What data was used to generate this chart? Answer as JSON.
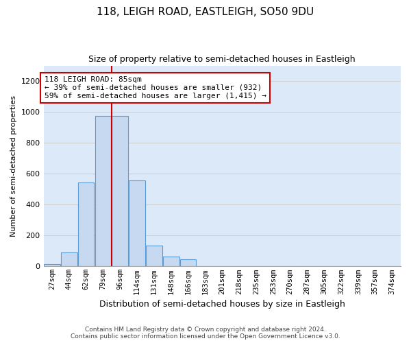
{
  "title_main": "118, LEIGH ROAD, EASTLEIGH, SO50 9DU",
  "title_sub": "Size of property relative to semi-detached houses in Eastleigh",
  "xlabel": "Distribution of semi-detached houses by size in Eastleigh",
  "ylabel": "Number of semi-detached properties",
  "categories": [
    "27sqm",
    "44sqm",
    "62sqm",
    "79sqm",
    "96sqm",
    "114sqm",
    "131sqm",
    "148sqm",
    "166sqm",
    "183sqm",
    "201sqm",
    "218sqm",
    "235sqm",
    "253sqm",
    "270sqm",
    "287sqm",
    "305sqm",
    "322sqm",
    "339sqm",
    "357sqm",
    "374sqm"
  ],
  "values": [
    15,
    90,
    545,
    975,
    975,
    555,
    135,
    65,
    45,
    0,
    0,
    0,
    0,
    0,
    0,
    0,
    0,
    0,
    0,
    0,
    0
  ],
  "bar_color": "#c6d9f0",
  "bar_edge_color": "#5b9bd5",
  "grid_color": "#d0d0d0",
  "background_color": "#dce9f8",
  "property_line_color": "#cc0000",
  "annotation_text": "118 LEIGH ROAD: 85sqm\n← 39% of semi-detached houses are smaller (932)\n59% of semi-detached houses are larger (1,415) →",
  "annotation_box_color": "#ffffff",
  "annotation_box_edge": "#cc0000",
  "footer_line1": "Contains HM Land Registry data © Crown copyright and database right 2024.",
  "footer_line2": "Contains public sector information licensed under the Open Government Licence v3.0.",
  "ylim": [
    0,
    1300
  ],
  "yticks": [
    0,
    200,
    400,
    600,
    800,
    1000,
    1200
  ]
}
